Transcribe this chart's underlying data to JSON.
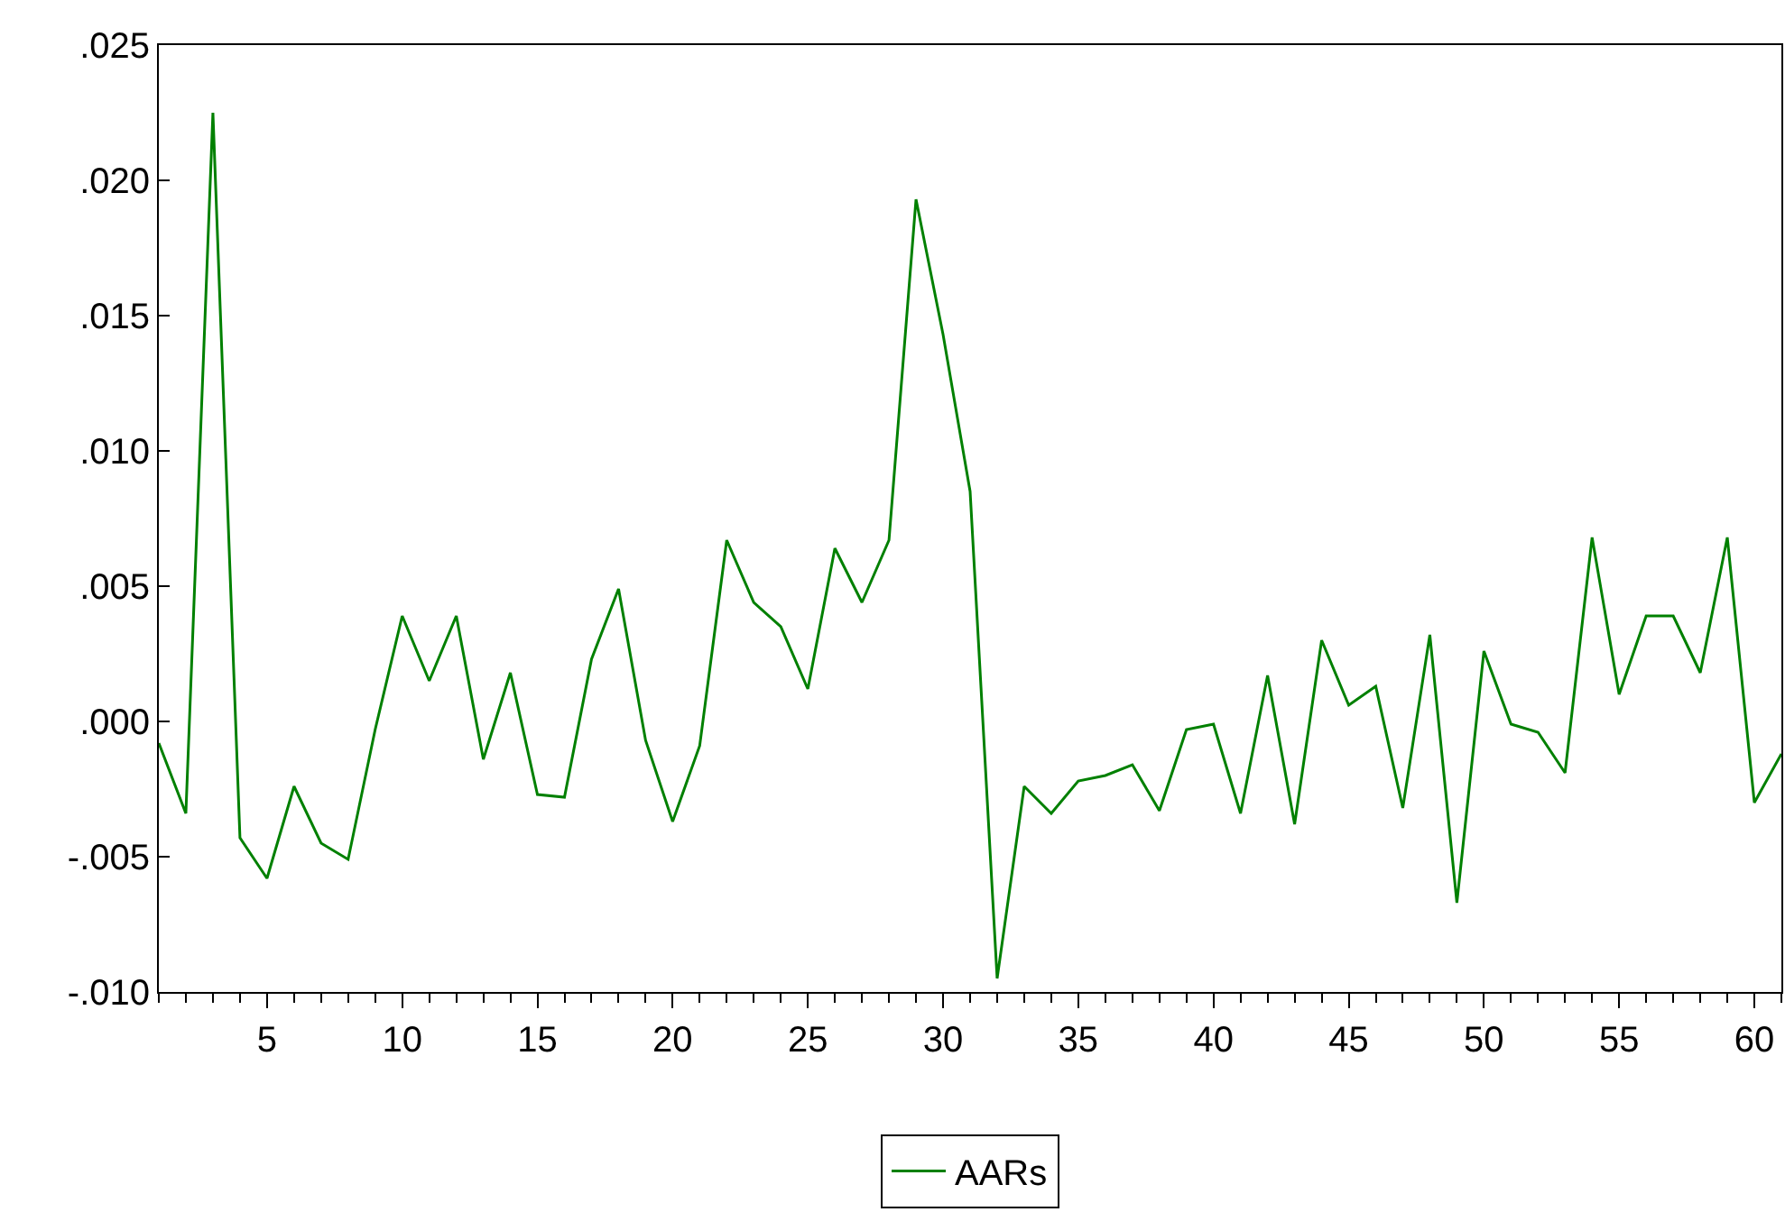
{
  "chart_data": {
    "type": "line",
    "x": [
      1,
      2,
      3,
      4,
      5,
      6,
      7,
      8,
      9,
      10,
      11,
      12,
      13,
      14,
      15,
      16,
      17,
      18,
      19,
      20,
      21,
      22,
      23,
      24,
      25,
      26,
      27,
      28,
      29,
      30,
      31,
      32,
      33,
      34,
      35,
      36,
      37,
      38,
      39,
      40,
      41,
      42,
      43,
      44,
      45,
      46,
      47,
      48,
      49,
      50,
      51,
      52,
      53,
      54,
      55,
      56,
      57,
      58,
      59,
      60,
      61
    ],
    "series": [
      {
        "name": "AARs",
        "color": "#008000",
        "values": [
          -0.0008,
          -0.0034,
          0.0225,
          -0.0043,
          -0.0058,
          -0.0024,
          -0.0045,
          -0.0051,
          -0.0003,
          0.0039,
          0.0015,
          0.0039,
          -0.0014,
          0.0018,
          -0.0027,
          -0.0028,
          0.0023,
          0.0049,
          -0.0007,
          -0.0037,
          -0.0009,
          0.0067,
          0.0044,
          0.0035,
          0.0012,
          0.0064,
          0.0044,
          0.0067,
          0.0193,
          0.0143,
          0.0085,
          -0.0095,
          -0.0024,
          -0.0034,
          -0.0022,
          -0.002,
          -0.0016,
          -0.0033,
          -0.0003,
          -0.0001,
          -0.0034,
          0.0017,
          -0.0038,
          0.003,
          0.0006,
          0.0013,
          -0.0032,
          0.0032,
          -0.0067,
          0.0026,
          -0.0001,
          -0.0004,
          -0.0019,
          0.0068,
          0.001,
          0.0039,
          0.0039,
          0.0018,
          0.0068,
          -0.003,
          -0.0012
        ]
      }
    ],
    "xlim": [
      1,
      61
    ],
    "xticks": [
      5,
      10,
      15,
      20,
      25,
      30,
      35,
      40,
      45,
      50,
      55,
      60
    ],
    "ylim": [
      -0.01,
      0.025
    ],
    "yticks": [
      {
        "value": -0.01,
        "label": "-.010"
      },
      {
        "value": -0.005,
        "label": "-.005"
      },
      {
        "value": 0,
        "label": ".000"
      },
      {
        "value": 0.005,
        "label": ".005"
      },
      {
        "value": 0.01,
        "label": ".010"
      },
      {
        "value": 0.015,
        "label": ".015"
      },
      {
        "value": 0.02,
        "label": ".020"
      },
      {
        "value": 0.025,
        "label": ".025"
      }
    ],
    "legend": "bottom",
    "marker": "none",
    "line_style": "solid"
  }
}
